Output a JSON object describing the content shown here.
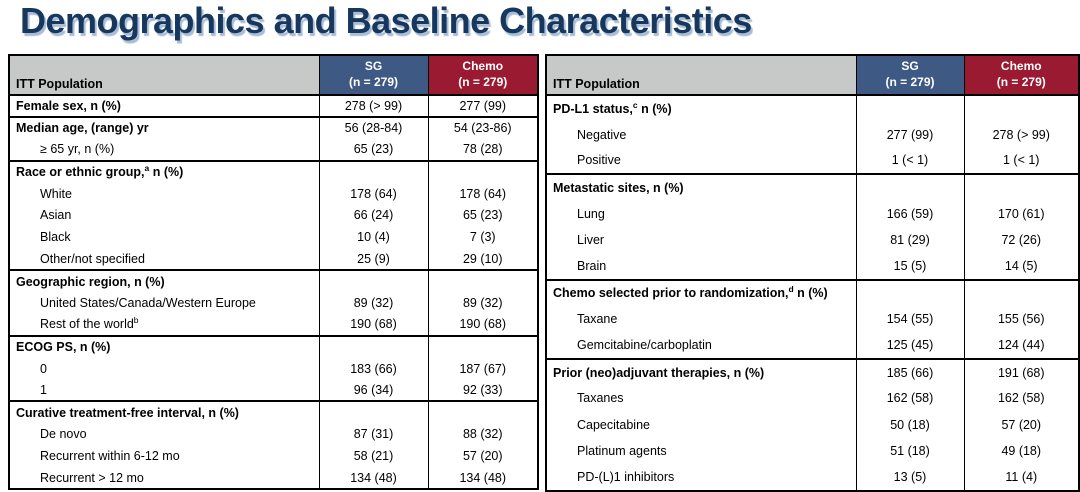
{
  "title": "Demographics and Baseline Characteristics",
  "colors": {
    "title": "#17375D",
    "title_shadow": "#A7BCD6",
    "header_gray": "#C6C9C7",
    "sg_blue": "#3E5A84",
    "chemo_red": "#9A1B31",
    "border": "#000000",
    "text": "#000000",
    "background": "#FFFFFF"
  },
  "tables": {
    "left": {
      "header": {
        "population": "ITT Population",
        "sg_line1": "SG",
        "sg_line2": "(n = 279)",
        "chemo_line1": "Chemo",
        "chemo_line2": "(n = 279)"
      },
      "groups": [
        {
          "rows": [
            {
              "pre": "Female sex, n (%)",
              "sup": "",
              "post": "",
              "bold": true,
              "indent": false,
              "sg": "278 (> 99)",
              "chemo": "277 (99)"
            }
          ]
        },
        {
          "rows": [
            {
              "pre": "Median age, (range) yr",
              "sup": "",
              "post": "",
              "bold": true,
              "indent": false,
              "sg": "56 (28-84)",
              "chemo": "54 (23-86)"
            },
            {
              "pre": "≥ 65 yr, n (%)",
              "sup": "",
              "post": "",
              "bold": false,
              "indent": true,
              "sg": "65 (23)",
              "chemo": "78 (28)"
            }
          ]
        },
        {
          "rows": [
            {
              "pre": "Race or ethnic group,",
              "sup": "a",
              "post": " n (%)",
              "bold": true,
              "indent": false,
              "sg": "",
              "chemo": ""
            },
            {
              "pre": "White",
              "sup": "",
              "post": "",
              "bold": false,
              "indent": true,
              "sg": "178 (64)",
              "chemo": "178 (64)"
            },
            {
              "pre": "Asian",
              "sup": "",
              "post": "",
              "bold": false,
              "indent": true,
              "sg": "66 (24)",
              "chemo": "65 (23)"
            },
            {
              "pre": "Black",
              "sup": "",
              "post": "",
              "bold": false,
              "indent": true,
              "sg": "10 (4)",
              "chemo": "7 (3)"
            },
            {
              "pre": "Other/not specified",
              "sup": "",
              "post": "",
              "bold": false,
              "indent": true,
              "sg": "25 (9)",
              "chemo": "29 (10)"
            }
          ]
        },
        {
          "rows": [
            {
              "pre": "Geographic region, n (%)",
              "sup": "",
              "post": "",
              "bold": true,
              "indent": false,
              "sg": "",
              "chemo": ""
            },
            {
              "pre": "United States/Canada/Western Europe",
              "sup": "",
              "post": "",
              "bold": false,
              "indent": true,
              "sg": "89 (32)",
              "chemo": "89 (32)"
            },
            {
              "pre": "Rest of the world",
              "sup": "b",
              "post": "",
              "bold": false,
              "indent": true,
              "sg": "190 (68)",
              "chemo": "190 (68)"
            }
          ]
        },
        {
          "rows": [
            {
              "pre": "ECOG PS, n (%)",
              "sup": "",
              "post": "",
              "bold": true,
              "indent": false,
              "sg": "",
              "chemo": ""
            },
            {
              "pre": "0",
              "sup": "",
              "post": "",
              "bold": false,
              "indent": true,
              "sg": "183 (66)",
              "chemo": "187 (67)"
            },
            {
              "pre": "1",
              "sup": "",
              "post": "",
              "bold": false,
              "indent": true,
              "sg": "96 (34)",
              "chemo": "92 (33)"
            }
          ]
        },
        {
          "rows": [
            {
              "pre": "Curative treatment-free interval, n (%)",
              "sup": "",
              "post": "",
              "bold": true,
              "indent": false,
              "sg": "",
              "chemo": ""
            },
            {
              "pre": "De novo",
              "sup": "",
              "post": "",
              "bold": false,
              "indent": true,
              "sg": "87 (31)",
              "chemo": "88 (32)"
            },
            {
              "pre": "Recurrent within 6-12 mo",
              "sup": "",
              "post": "",
              "bold": false,
              "indent": true,
              "sg": "58 (21)",
              "chemo": "57 (20)"
            },
            {
              "pre": "Recurrent > 12 mo",
              "sup": "",
              "post": "",
              "bold": false,
              "indent": true,
              "sg": "134 (48)",
              "chemo": "134 (48)"
            }
          ]
        }
      ]
    },
    "right": {
      "header": {
        "population": "ITT Population",
        "sg_line1": "SG",
        "sg_line2": "(n = 279)",
        "chemo_line1": "Chemo",
        "chemo_line2": "(n = 279)"
      },
      "groups": [
        {
          "rows": [
            {
              "pre": "PD-L1 status,",
              "sup": "c",
              "post": " n (%)",
              "bold": true,
              "indent": false,
              "sg": "",
              "chemo": ""
            },
            {
              "pre": "Negative",
              "sup": "",
              "post": "",
              "bold": false,
              "indent": true,
              "sg": "277 (99)",
              "chemo": "278 (> 99)"
            },
            {
              "pre": "Positive",
              "sup": "",
              "post": "",
              "bold": false,
              "indent": true,
              "sg": "1 (< 1)",
              "chemo": "1 (< 1)"
            }
          ]
        },
        {
          "rows": [
            {
              "pre": "Metastatic sites, n (%)",
              "sup": "",
              "post": "",
              "bold": true,
              "indent": false,
              "sg": "",
              "chemo": ""
            },
            {
              "pre": "Lung",
              "sup": "",
              "post": "",
              "bold": false,
              "indent": true,
              "sg": "166 (59)",
              "chemo": "170 (61)"
            },
            {
              "pre": "Liver",
              "sup": "",
              "post": "",
              "bold": false,
              "indent": true,
              "sg": "81 (29)",
              "chemo": "72 (26)"
            },
            {
              "pre": "Brain",
              "sup": "",
              "post": "",
              "bold": false,
              "indent": true,
              "sg": "15 (5)",
              "chemo": "14 (5)"
            }
          ]
        },
        {
          "rows": [
            {
              "pre": "Chemo selected prior to randomization,",
              "sup": "d",
              "post": " n (%)",
              "bold": true,
              "indent": false,
              "sg": "",
              "chemo": ""
            },
            {
              "pre": "Taxane",
              "sup": "",
              "post": "",
              "bold": false,
              "indent": true,
              "sg": "154 (55)",
              "chemo": "155 (56)"
            },
            {
              "pre": "Gemcitabine/carboplatin",
              "sup": "",
              "post": "",
              "bold": false,
              "indent": true,
              "sg": "125 (45)",
              "chemo": "124 (44)"
            }
          ]
        },
        {
          "rows": [
            {
              "pre": "Prior (neo)adjuvant therapies, n (%)",
              "sup": "",
              "post": "",
              "bold": true,
              "indent": false,
              "sg": "185 (66)",
              "chemo": "191 (68)"
            },
            {
              "pre": "Taxanes",
              "sup": "",
              "post": "",
              "bold": false,
              "indent": true,
              "sg": "162 (58)",
              "chemo": "162 (58)"
            },
            {
              "pre": "Capecitabine",
              "sup": "",
              "post": "",
              "bold": false,
              "indent": true,
              "sg": "50 (18)",
              "chemo": "57 (20)"
            },
            {
              "pre": "Platinum agents",
              "sup": "",
              "post": "",
              "bold": false,
              "indent": true,
              "sg": "51 (18)",
              "chemo": "49 (18)"
            },
            {
              "pre": "PD-(L)1 inhibitors",
              "sup": "",
              "post": "",
              "bold": false,
              "indent": true,
              "sg": "13 (5)",
              "chemo": "11 (4)"
            }
          ]
        }
      ]
    }
  }
}
